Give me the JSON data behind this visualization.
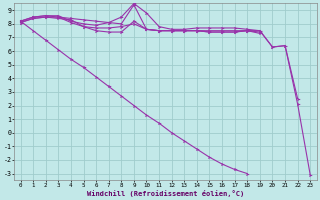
{
  "xlabel": "Windchill (Refroidissement éolien,°C)",
  "background_color": "#c2e8e8",
  "grid_color": "#a0cccc",
  "line_color": "#9933aa",
  "xlim": [
    -0.5,
    23.5
  ],
  "ylim": [
    -3.5,
    9.5
  ],
  "xtick_labels": [
    "0",
    "1",
    "2",
    "3",
    "4",
    "5",
    "6",
    "7",
    "8",
    "9",
    "10",
    "11",
    "12",
    "13",
    "14",
    "15",
    "16",
    "17",
    "18",
    "19",
    "20",
    "21",
    "22",
    "23"
  ],
  "ytick_labels": [
    "9",
    "8",
    "7",
    "6",
    "5",
    "4",
    "3",
    "2",
    "1",
    "0",
    "-1",
    "-2",
    "-3"
  ],
  "series": [
    {
      "x": [
        0,
        1,
        2,
        3,
        4,
        5,
        6,
        7,
        8,
        9,
        10,
        11,
        12,
        13,
        14,
        15,
        16,
        17,
        18,
        19,
        20,
        21,
        22,
        23
      ],
      "y": [
        8.2,
        8.5,
        8.6,
        8.5,
        8.4,
        8.3,
        8.2,
        8.1,
        8.0,
        9.4,
        7.6,
        7.5,
        7.5,
        7.5,
        7.5,
        7.5,
        7.5,
        7.5,
        7.5,
        7.5,
        6.3,
        6.4,
        2.1,
        -3.1
      ]
    },
    {
      "x": [
        0,
        1,
        2,
        3,
        4,
        5,
        6,
        7,
        8,
        9,
        10,
        11,
        12,
        13,
        14,
        15,
        16,
        17,
        18,
        19,
        20,
        21,
        22
      ],
      "y": [
        8.2,
        8.5,
        8.6,
        8.6,
        8.2,
        8.0,
        7.9,
        8.1,
        8.5,
        9.5,
        8.8,
        7.8,
        7.6,
        7.6,
        7.7,
        7.7,
        7.7,
        7.7,
        7.6,
        7.5,
        6.3,
        6.4,
        2.5
      ]
    },
    {
      "x": [
        0,
        1,
        2,
        3,
        4,
        5,
        6,
        7,
        8,
        9,
        10,
        11,
        12,
        13,
        14,
        15,
        16,
        17,
        18,
        19
      ],
      "y": [
        8.1,
        8.4,
        8.5,
        8.4,
        8.3,
        7.8,
        7.7,
        7.7,
        7.8,
        8.0,
        7.6,
        7.5,
        7.5,
        7.5,
        7.5,
        7.4,
        7.4,
        7.4,
        7.5,
        7.4
      ]
    },
    {
      "x": [
        0,
        1,
        2,
        3,
        4,
        5,
        6,
        7,
        8,
        9,
        10,
        11,
        12,
        13,
        14,
        15,
        16,
        17,
        18,
        19
      ],
      "y": [
        8.1,
        8.4,
        8.5,
        8.5,
        8.1,
        7.8,
        7.5,
        7.4,
        7.4,
        8.2,
        7.6,
        7.5,
        7.5,
        7.5,
        7.5,
        7.4,
        7.4,
        7.4,
        7.5,
        7.3
      ]
    },
    {
      "x": [
        0,
        1,
        2,
        3,
        4,
        5,
        6,
        7,
        8,
        9,
        10,
        11,
        12,
        13,
        14,
        15,
        16,
        17,
        18
      ],
      "y": [
        8.2,
        7.5,
        6.8,
        6.1,
        5.4,
        4.8,
        4.1,
        3.4,
        2.7,
        2.0,
        1.3,
        0.7,
        0.0,
        -0.6,
        -1.2,
        -1.8,
        -2.3,
        -2.7,
        -3.0
      ]
    }
  ]
}
